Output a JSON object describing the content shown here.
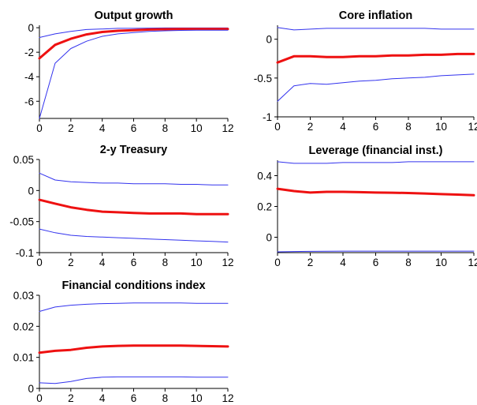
{
  "figure": {
    "colors": {
      "band": "#3333ee",
      "median": "#ee1111",
      "axis": "#000000",
      "background": "#ffffff"
    }
  },
  "chart_data": [
    {
      "type": "line",
      "title": "Output growth",
      "xlabel": "",
      "ylabel": "",
      "xlim": [
        0,
        12
      ],
      "ylim": [
        -7.4,
        0.2
      ],
      "xticks": [
        0,
        2,
        4,
        6,
        8,
        10,
        12
      ],
      "xtick_labels": [
        "0",
        "2",
        "4",
        "6",
        "8",
        "10",
        "12"
      ],
      "yticks": [
        0,
        -2,
        -4,
        -6
      ],
      "ytick_labels": [
        "0",
        "-2",
        "-4",
        "-6"
      ],
      "x": [
        0,
        1,
        2,
        3,
        4,
        5,
        6,
        7,
        8,
        9,
        10,
        11,
        12
      ],
      "series": [
        {
          "role": "upper",
          "values": [
            -0.8,
            -0.5,
            -0.3,
            -0.15,
            -0.1,
            -0.05,
            -0.05,
            -0.03,
            -0.02,
            -0.02,
            -0.02,
            -0.02,
            -0.02
          ]
        },
        {
          "role": "median",
          "values": [
            -2.5,
            -1.4,
            -0.9,
            -0.55,
            -0.35,
            -0.25,
            -0.2,
            -0.15,
            -0.12,
            -0.1,
            -0.1,
            -0.1,
            -0.1
          ]
        },
        {
          "role": "lower",
          "values": [
            -7.4,
            -2.9,
            -1.7,
            -1.1,
            -0.7,
            -0.5,
            -0.4,
            -0.3,
            -0.25,
            -0.22,
            -0.2,
            -0.2,
            -0.2
          ]
        }
      ]
    },
    {
      "type": "line",
      "title": "Core inflation",
      "xlabel": "",
      "ylabel": "",
      "xlim": [
        0,
        12
      ],
      "ylim": [
        -1.0,
        0.18
      ],
      "xticks": [
        0,
        2,
        4,
        6,
        8,
        10,
        12
      ],
      "xtick_labels": [
        "0",
        "2",
        "4",
        "6",
        "8",
        "10",
        "12"
      ],
      "yticks": [
        0,
        -0.5,
        -1
      ],
      "ytick_labels": [
        "0",
        "-0.5",
        "-1"
      ],
      "x": [
        0,
        1,
        2,
        3,
        4,
        5,
        6,
        7,
        8,
        9,
        10,
        11,
        12
      ],
      "series": [
        {
          "role": "upper",
          "values": [
            0.15,
            0.12,
            0.13,
            0.14,
            0.14,
            0.14,
            0.14,
            0.14,
            0.14,
            0.14,
            0.13,
            0.13,
            0.13
          ]
        },
        {
          "role": "median",
          "values": [
            -0.3,
            -0.22,
            -0.22,
            -0.23,
            -0.23,
            -0.22,
            -0.22,
            -0.21,
            -0.21,
            -0.2,
            -0.2,
            -0.19,
            -0.19
          ]
        },
        {
          "role": "lower",
          "values": [
            -0.8,
            -0.6,
            -0.57,
            -0.58,
            -0.56,
            -0.54,
            -0.53,
            -0.51,
            -0.5,
            -0.49,
            -0.47,
            -0.46,
            -0.45
          ]
        }
      ]
    },
    {
      "type": "line",
      "title": "2-y Treasury",
      "xlabel": "",
      "ylabel": "",
      "xlim": [
        0,
        12
      ],
      "ylim": [
        -0.1,
        0.05
      ],
      "xticks": [
        0,
        2,
        4,
        6,
        8,
        10,
        12
      ],
      "xtick_labels": [
        "0",
        "2",
        "4",
        "6",
        "8",
        "10",
        "12"
      ],
      "yticks": [
        0.05,
        0,
        -0.05,
        -0.1
      ],
      "ytick_labels": [
        "0.05",
        "0",
        "-0.05",
        "-0.1"
      ],
      "x": [
        0,
        1,
        2,
        3,
        4,
        5,
        6,
        7,
        8,
        9,
        10,
        11,
        12
      ],
      "series": [
        {
          "role": "upper",
          "values": [
            0.028,
            0.017,
            0.014,
            0.013,
            0.012,
            0.012,
            0.011,
            0.011,
            0.011,
            0.01,
            0.01,
            0.009,
            0.009
          ]
        },
        {
          "role": "median",
          "values": [
            -0.015,
            -0.021,
            -0.027,
            -0.031,
            -0.034,
            -0.035,
            -0.036,
            -0.037,
            -0.037,
            -0.037,
            -0.038,
            -0.038,
            -0.038
          ]
        },
        {
          "role": "lower",
          "values": [
            -0.062,
            -0.068,
            -0.072,
            -0.074,
            -0.075,
            -0.076,
            -0.077,
            -0.078,
            -0.079,
            -0.08,
            -0.081,
            -0.082,
            -0.083
          ]
        }
      ]
    },
    {
      "type": "line",
      "title": "Leverage (financial inst.)",
      "xlabel": "",
      "ylabel": "",
      "xlim": [
        0,
        12
      ],
      "ylim": [
        -0.1,
        0.5
      ],
      "xticks": [
        0,
        2,
        4,
        6,
        8,
        10,
        12
      ],
      "xtick_labels": [
        "0",
        "2",
        "4",
        "6",
        "8",
        "10",
        "12"
      ],
      "yticks": [
        0.4,
        0.2,
        0
      ],
      "ytick_labels": [
        "0.4",
        "0.2",
        "0"
      ],
      "x": [
        0,
        1,
        2,
        3,
        4,
        5,
        6,
        7,
        8,
        9,
        10,
        11,
        12
      ],
      "series": [
        {
          "role": "upper",
          "values": [
            0.49,
            0.48,
            0.48,
            0.48,
            0.485,
            0.485,
            0.485,
            0.485,
            0.49,
            0.49,
            0.49,
            0.49,
            0.49
          ]
        },
        {
          "role": "median",
          "values": [
            0.315,
            0.3,
            0.29,
            0.295,
            0.295,
            0.293,
            0.29,
            0.289,
            0.287,
            0.284,
            0.28,
            0.277,
            0.273
          ]
        },
        {
          "role": "lower",
          "values": [
            -0.095,
            -0.093,
            -0.092,
            -0.091,
            -0.09,
            -0.09,
            -0.09,
            -0.09,
            -0.09,
            -0.09,
            -0.09,
            -0.09,
            -0.09
          ]
        }
      ]
    },
    {
      "type": "line",
      "title": "Financial conditions index",
      "xlabel": "",
      "ylabel": "",
      "xlim": [
        0,
        12
      ],
      "ylim": [
        0,
        0.03
      ],
      "xticks": [
        0,
        2,
        4,
        6,
        8,
        10,
        12
      ],
      "xtick_labels": [
        "0",
        "2",
        "4",
        "6",
        "8",
        "10",
        "12"
      ],
      "yticks": [
        0.03,
        0.02,
        0.01,
        0
      ],
      "ytick_labels": [
        "0.03",
        "0.02",
        "0.01",
        "0"
      ],
      "x": [
        0,
        1,
        2,
        3,
        4,
        5,
        6,
        7,
        8,
        9,
        10,
        11,
        12
      ],
      "series": [
        {
          "role": "upper",
          "values": [
            0.0248,
            0.0262,
            0.0268,
            0.0271,
            0.0273,
            0.0274,
            0.0275,
            0.0275,
            0.0275,
            0.0275,
            0.0274,
            0.0274,
            0.0274
          ]
        },
        {
          "role": "median",
          "values": [
            0.0115,
            0.0121,
            0.0124,
            0.0131,
            0.0135,
            0.0137,
            0.0138,
            0.0138,
            0.0138,
            0.0138,
            0.0137,
            0.0136,
            0.0135
          ]
        },
        {
          "role": "lower",
          "values": [
            0.0018,
            0.0016,
            0.0022,
            0.0032,
            0.0036,
            0.0037,
            0.0037,
            0.0037,
            0.0037,
            0.0037,
            0.0036,
            0.0036,
            0.0036
          ]
        }
      ]
    }
  ]
}
